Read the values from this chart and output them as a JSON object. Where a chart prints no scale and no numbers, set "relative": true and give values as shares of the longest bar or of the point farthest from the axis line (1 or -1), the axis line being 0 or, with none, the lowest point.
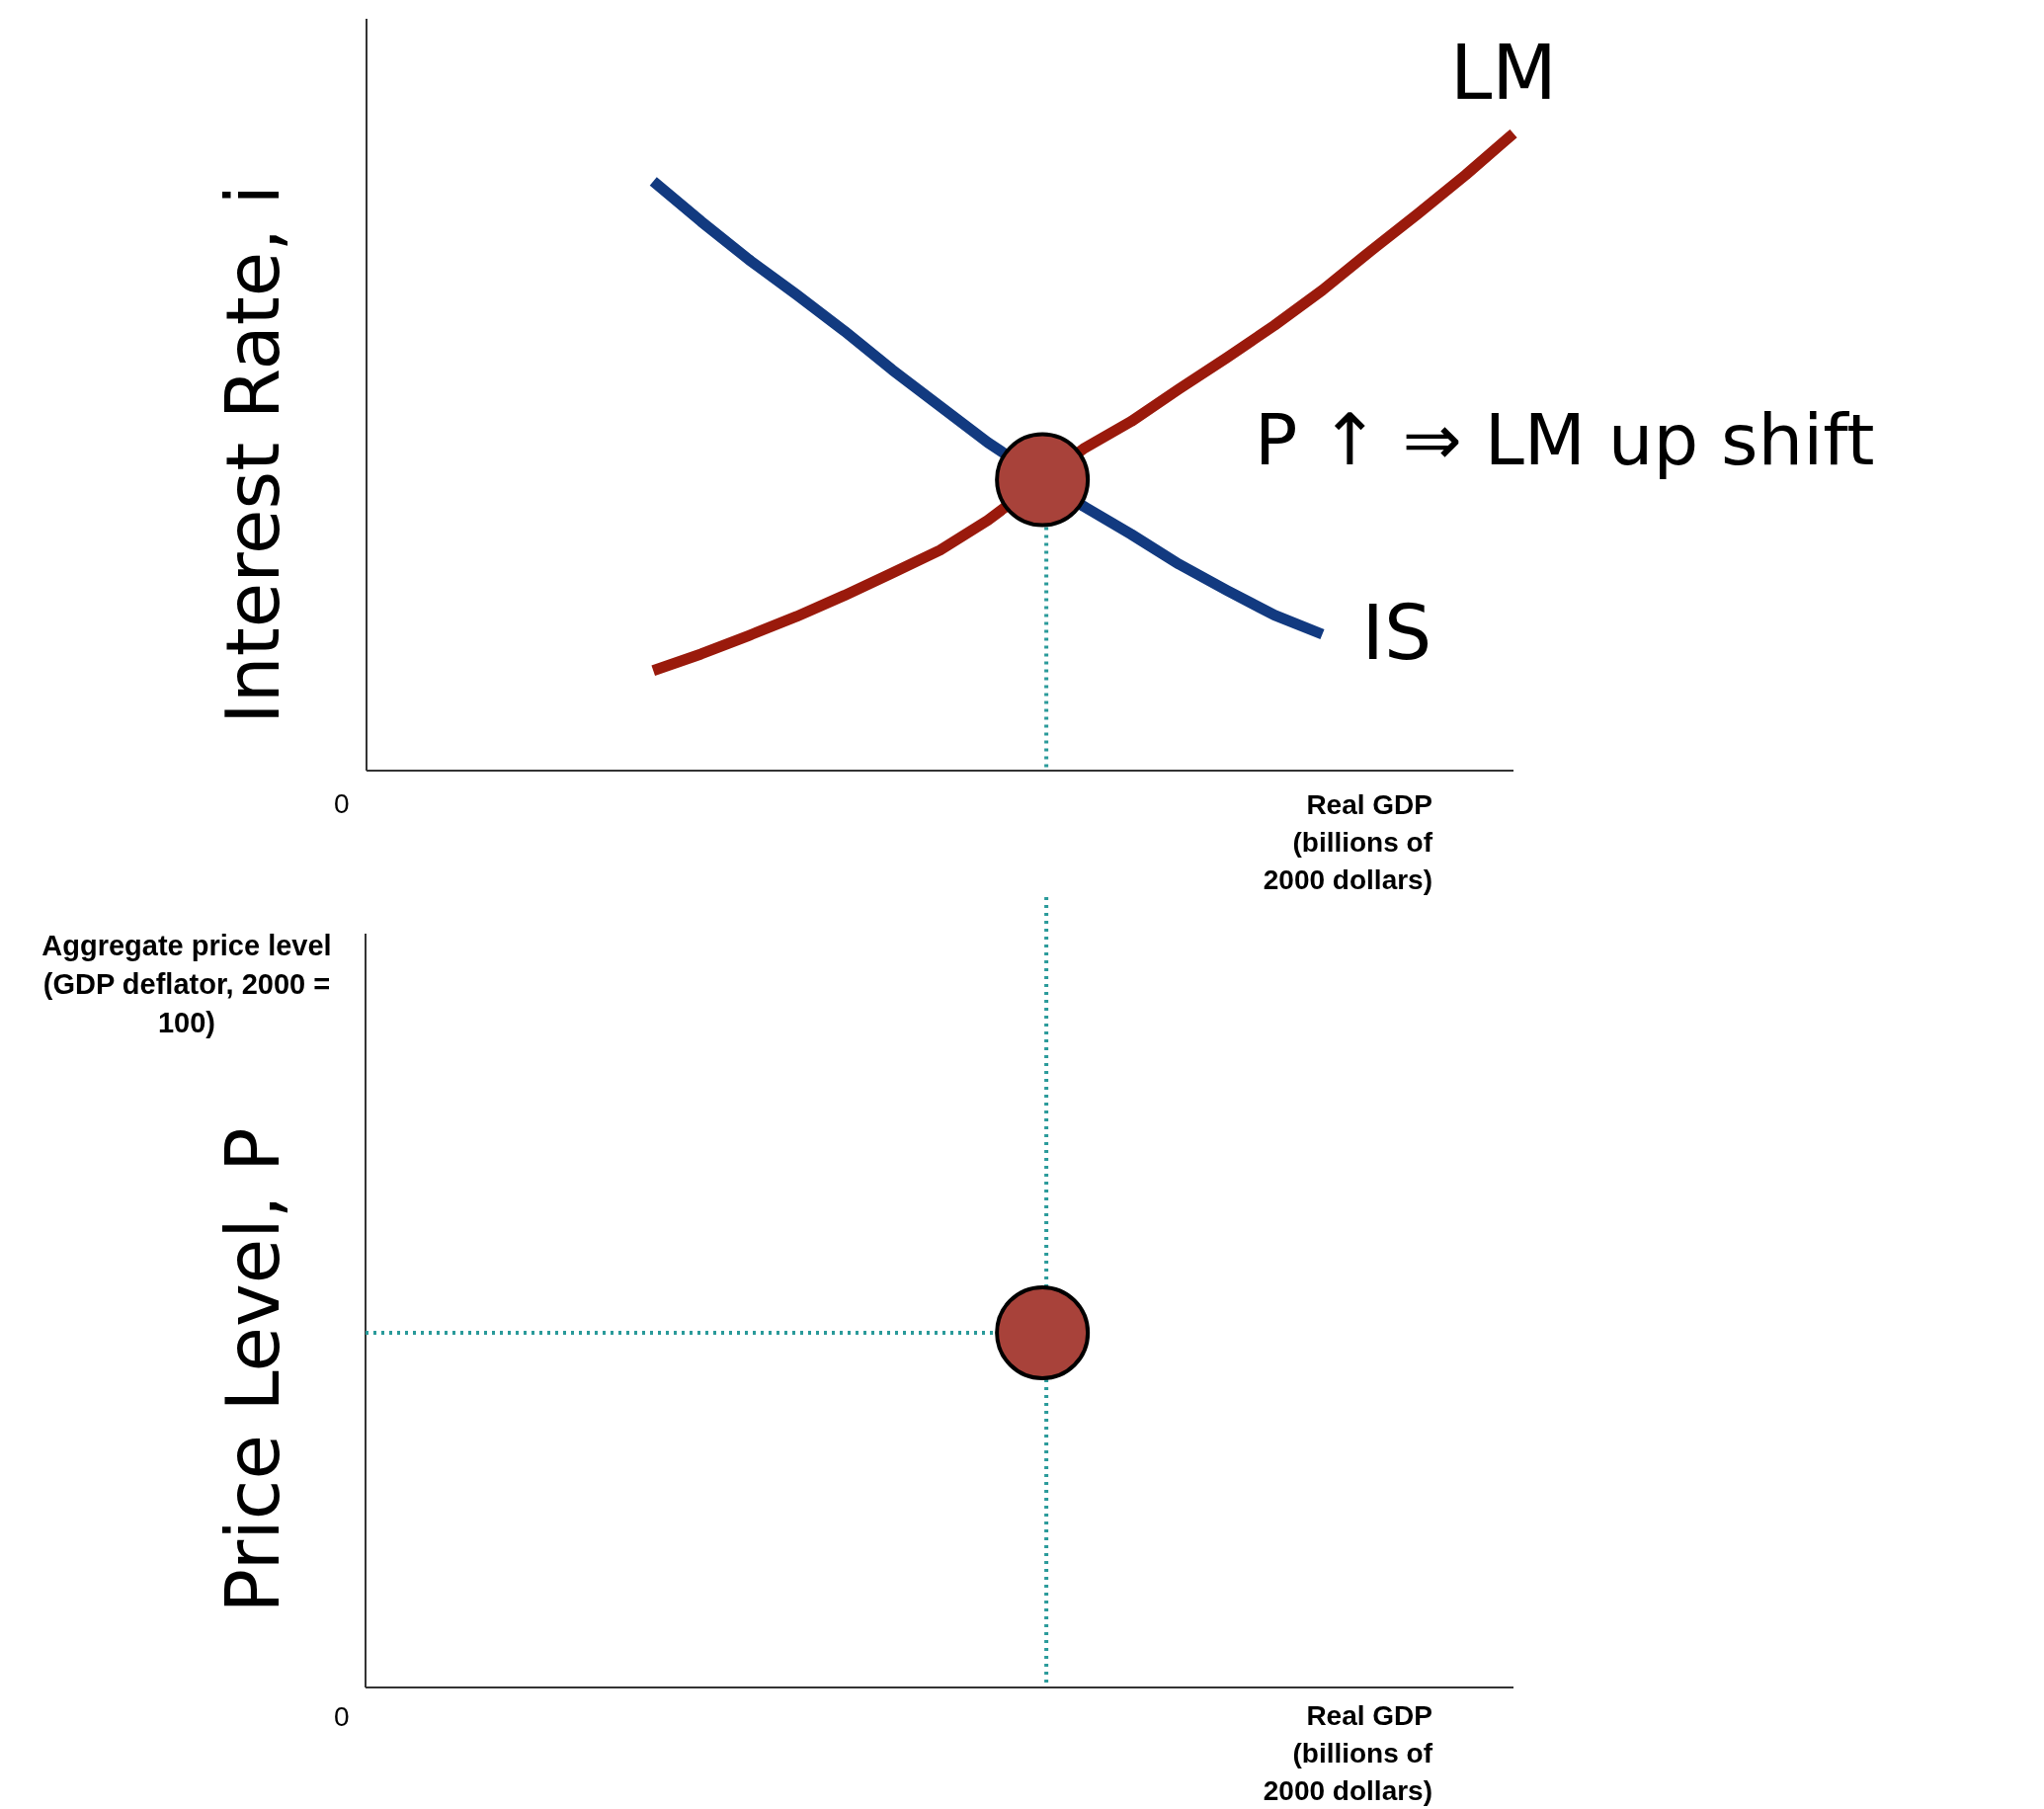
{
  "chart_data": [
    {
      "type": "line",
      "relative": true,
      "ylabel": "Interest Rate, i",
      "xlabel": "Real GDP\n(billions of\n2000 dollars)",
      "annotations": [
        "0",
        "P ↑  ⇒ LM up shift"
      ],
      "categories": [
        null,
        null,
        null,
        null,
        null,
        null,
        null,
        null,
        null,
        null,
        null,
        null,
        null,
        null,
        null,
        null,
        null,
        null,
        null,
        null,
        null,
        null,
        null,
        null,
        null
      ],
      "series": [
        {
          "name": "IS",
          "color": "#123a80",
          "values": [
            null,
            null,
            null,
            null,
            null,
            null,
            0.925,
            0.862,
            0.802,
            0.747,
            0.69,
            0.629,
            0.572,
            0.515,
            null,
            0.415,
            0.371,
            0.324,
            0.283,
            0.244,
            0.214,
            null,
            null,
            null,
            null
          ]
        },
        {
          "name": "LM",
          "color": "#9a1a0c",
          "values": [
            null,
            null,
            null,
            null,
            null,
            null,
            0.157,
            0.183,
            0.212,
            0.242,
            0.275,
            0.31,
            0.346,
            0.393,
            null,
            0.505,
            0.548,
            0.599,
            0.648,
            0.699,
            0.754,
            0.815,
            0.874,
            0.935,
            1.0
          ]
        }
      ]
    },
    {
      "type": "other",
      "ylabel": "Price Level, P",
      "xlabel": "Real GDP\n(billions of\n2000 dollars)",
      "annotations": [
        "0",
        "Aggregate price level (GDP deflator, 2000 = 100)"
      ]
    }
  ]
}
